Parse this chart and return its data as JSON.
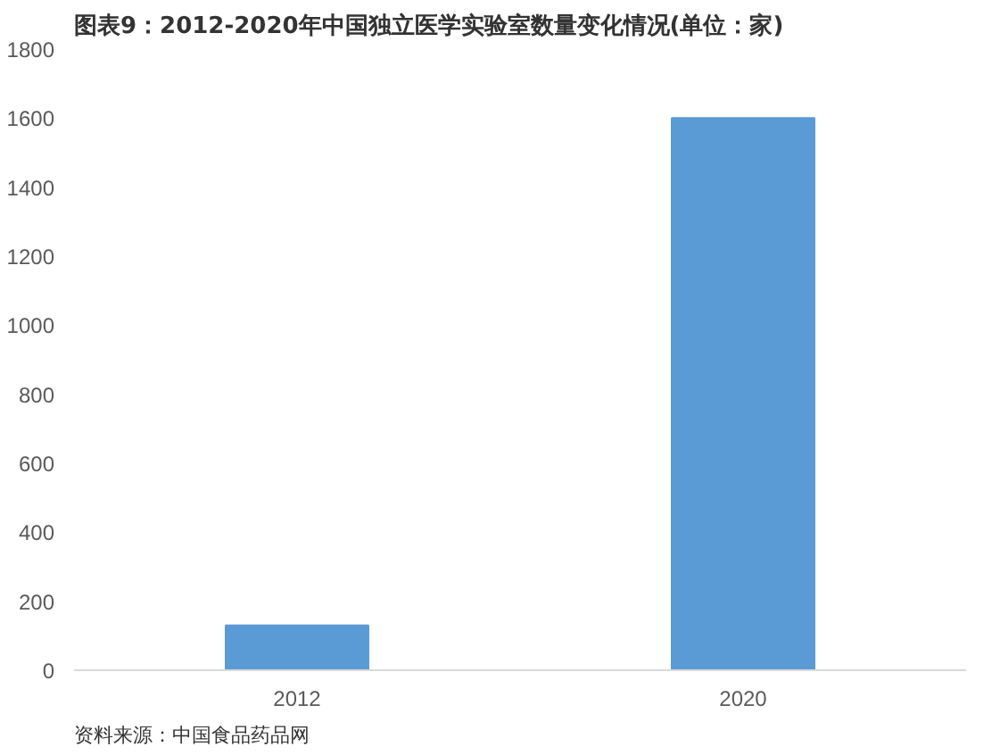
{
  "chart_data": {
    "type": "bar",
    "title": "图表9：2012-2020年中国独立医学实验室数量变化情况(单位：家)",
    "categories": [
      "2012",
      "2020"
    ],
    "values": [
      130,
      1600
    ],
    "color": "#5b9bd5",
    "ylim": [
      0,
      1800
    ],
    "yticks": [
      0,
      200,
      400,
      600,
      800,
      1000,
      1200,
      1400,
      1600,
      1800
    ],
    "grid": false,
    "annotations": [
      "资料来源：中国食品药品网"
    ]
  }
}
